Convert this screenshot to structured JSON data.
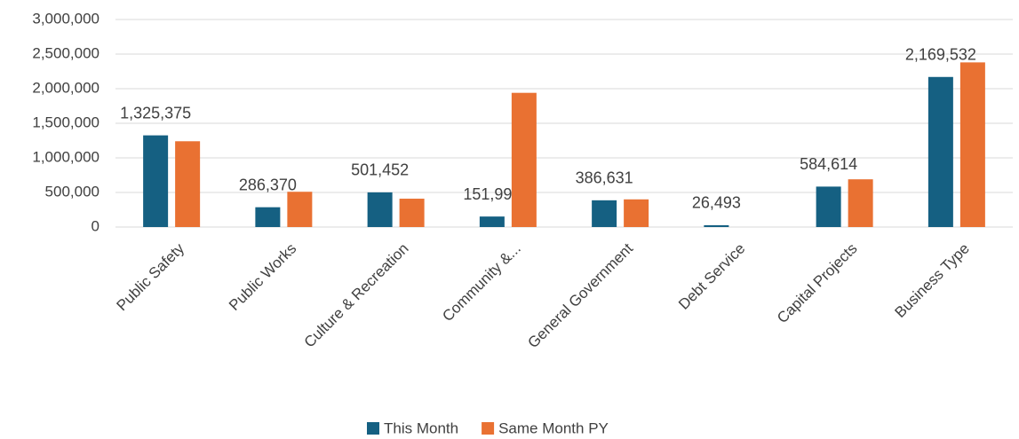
{
  "chart_data": {
    "type": "bar",
    "categories": [
      "Public Safety",
      "Public Works",
      "Culture & Recreation",
      "Community &...",
      "General Government",
      "Debt Service",
      "Capital Projects",
      "Business Type"
    ],
    "series": [
      {
        "name": "This Month",
        "color": "#156082",
        "values": [
          1325375,
          286370,
          501452,
          151994,
          386631,
          26493,
          584614,
          2169532
        ],
        "value_labels": [
          "1,325,375",
          "286,370",
          "501,452",
          "151,994",
          "386,631",
          "26,493",
          "584,614",
          "2,169,532"
        ]
      },
      {
        "name": "Same Month PY",
        "color": "#e97132",
        "values": [
          1240000,
          510000,
          410000,
          1940000,
          400000,
          0,
          690000,
          2380000
        ]
      }
    ],
    "ylim": [
      0,
      3000000
    ],
    "yticks": [
      {
        "value": 0,
        "label": "0"
      },
      {
        "value": 500000,
        "label": "500,000"
      },
      {
        "value": 1000000,
        "label": "1,000,000"
      },
      {
        "value": 1500000,
        "label": "1,500,000"
      },
      {
        "value": 2000000,
        "label": "2,000,000"
      },
      {
        "value": 2500000,
        "label": "2,500,000"
      },
      {
        "value": 3000000,
        "label": "3,000,000"
      }
    ],
    "grid": true,
    "legend": "bottom"
  }
}
